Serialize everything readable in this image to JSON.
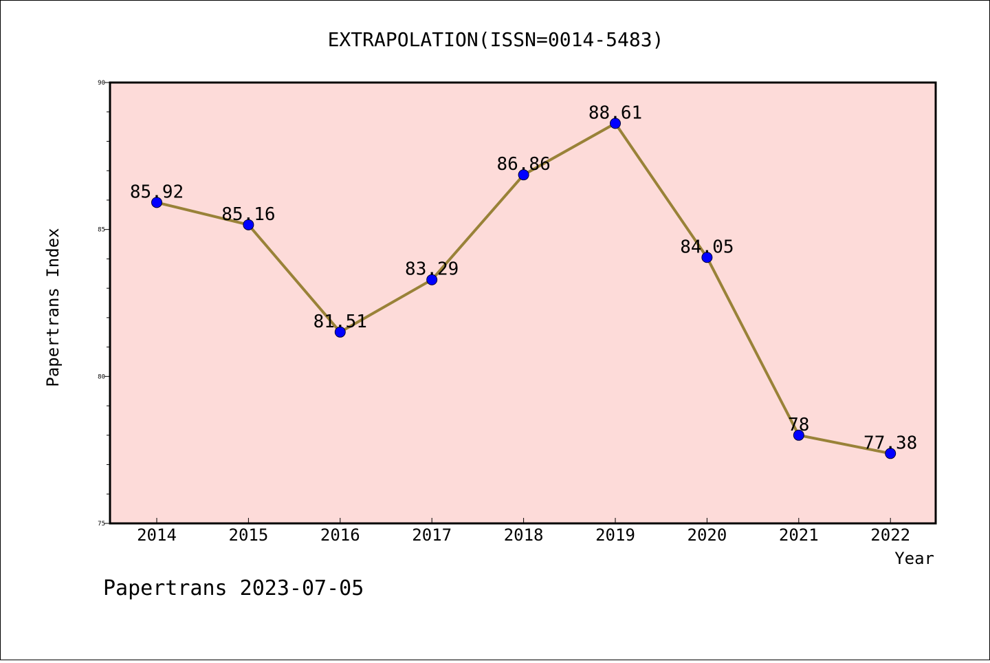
{
  "chart_data": {
    "type": "line",
    "title": "EXTRAPOLATION(ISSN=0014-5483)",
    "xlabel": "Year",
    "ylabel": "Papertrans Index",
    "categories": [
      "2014",
      "2015",
      "2016",
      "2017",
      "2018",
      "2019",
      "2020",
      "2021",
      "2022"
    ],
    "values": [
      85.92,
      85.16,
      81.51,
      83.29,
      86.86,
      88.61,
      84.05,
      78,
      77.38
    ],
    "data_labels": [
      "85.92",
      "85.16",
      "81.51",
      "83.29",
      "86.86",
      "88.61",
      "84.05",
      "78",
      "77.38"
    ],
    "ylim": [
      75,
      90
    ],
    "yticks": [
      "75",
      "80",
      "85",
      "90"
    ],
    "grid": false,
    "legend": "none"
  },
  "footer": "Papertrans 2023-07-05",
  "colors": {
    "plot_background": "#fddbd9",
    "line": "#998238",
    "marker": "#0000ff",
    "axis": "#000000"
  }
}
